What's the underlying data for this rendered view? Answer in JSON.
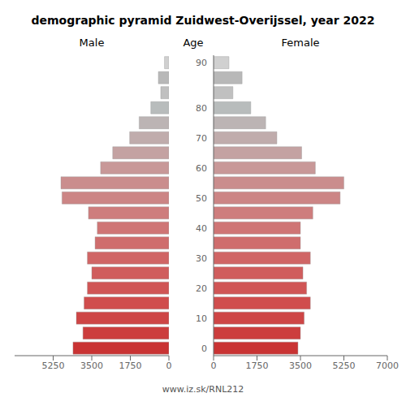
{
  "chart_data": [
    {
      "type": "bar",
      "orientation": "horizontal",
      "title": "demographic pyramid Zuidwest-Overijssel, year 2022",
      "xlabel": "Male",
      "categories": [
        "0",
        null,
        "10",
        null,
        "20",
        null,
        "30",
        null,
        "40",
        null,
        "50",
        null,
        "60",
        null,
        "70",
        null,
        "80",
        null,
        null,
        "90"
      ],
      "values": [
        4350,
        3900,
        4200,
        3850,
        3700,
        3500,
        3700,
        3350,
        3250,
        3650,
        4850,
        4900,
        3100,
        2550,
        1780,
        1350,
        820,
        370,
        480,
        200
      ],
      "colors": [
        "#c93333",
        "#cc3d3d",
        "#ce4545",
        "#d04d4d",
        "#d05555",
        "#d05d5d",
        "#d06565",
        "#cf6d6d",
        "#cf7575",
        "#ce7d7d",
        "#cc8585",
        "#ca8d8d",
        "#c89898",
        "#c4a2a2",
        "#c0acac",
        "#bcb4b4",
        "#b8bcbc",
        "#c0c0c0",
        "#b8b8b8",
        "#d0d0d0"
      ],
      "xlim": [
        7000,
        0
      ],
      "xticks": [
        7000,
        5250,
        3500,
        1750,
        0
      ],
      "tick_labels": "x"
    },
    {
      "type": "bar",
      "orientation": "horizontal",
      "xlabel": "Female",
      "ylabel": "Age",
      "categories": [
        "0",
        null,
        "10",
        null,
        "20",
        null,
        "30",
        null,
        "40",
        null,
        "50",
        null,
        "60",
        null,
        "70",
        null,
        "80",
        null,
        null,
        "90"
      ],
      "values": [
        3400,
        3500,
        3650,
        3900,
        3750,
        3600,
        3900,
        3500,
        3500,
        4000,
        5100,
        5250,
        4100,
        3550,
        2550,
        2100,
        1500,
        780,
        1150,
        620
      ],
      "colors": [
        "#c93333",
        "#cc3d3d",
        "#ce4545",
        "#d04d4d",
        "#d05555",
        "#d05d5d",
        "#d06565",
        "#cf6d6d",
        "#cf7575",
        "#ce7d7d",
        "#cc8585",
        "#ca8d8d",
        "#c89898",
        "#c4a2a2",
        "#c0acac",
        "#bcb4b4",
        "#b8bcbc",
        "#c0c0c0",
        "#b8b8b8",
        "#d0d0d0"
      ],
      "xlim": [
        0,
        7000
      ],
      "xticks": [
        0,
        1750,
        3500,
        5250,
        7000
      ],
      "annotations": [
        "www.iz.sk/RNL212"
      ]
    }
  ]
}
